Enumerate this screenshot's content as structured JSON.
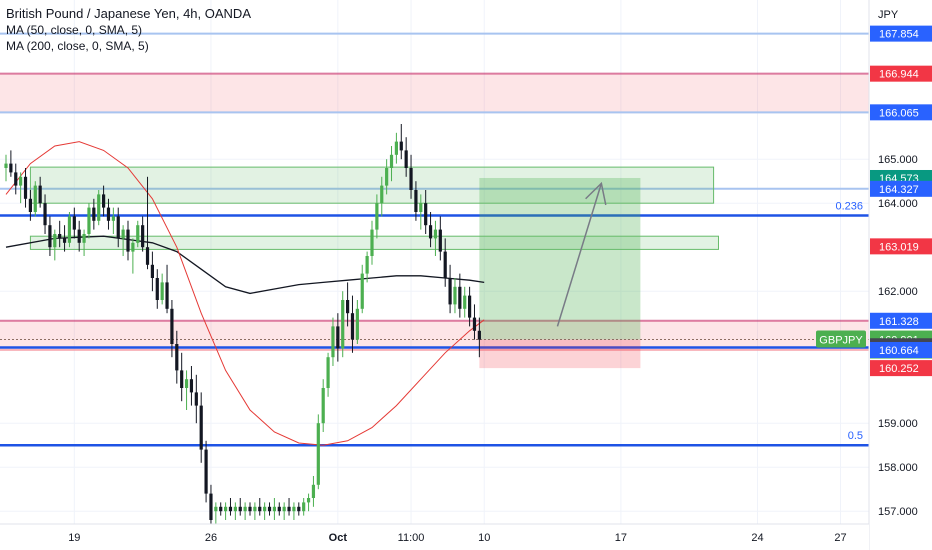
{
  "header": {
    "title": "British Pound / Japanese Yen, 4h, OANDA",
    "indicators": [
      "MA (50, close, 0, SMA, 5)",
      "MA (200, close, 0, SMA, 5)"
    ]
  },
  "colors": {
    "axis_bg": "#ffffff",
    "grid": "#f0f3fa",
    "candle_up": "#26a69a",
    "candle_up_body": "#4caf50",
    "candle_down": "#131722",
    "ma50": "#e53935",
    "ma200": "#131722",
    "level_blue": "#1e53e5",
    "level_light_blue": "#a8c4f0",
    "zone_red": "rgba(242,54,69,0.13)",
    "zone_red_line": "#c2185b",
    "zone_green": "rgba(76,175,80,0.16)",
    "zone_green_border": "#66bb6a",
    "target_green": "rgba(76,175,80,0.30)",
    "stop_red": "rgba(242,54,69,0.22)",
    "arrow": "#787b86",
    "tag_blue": "#2962ff",
    "tag_green": "#089981",
    "tag_red": "#f23645",
    "tag_dark": "#434651",
    "tag_symbol_green": "#4caf50"
  },
  "chart_data": {
    "type": "candlestick",
    "symbol": "GBPJPY",
    "currency": "JPY",
    "ylim": [
      156.8,
      168.3
    ],
    "y_ticks": [
      157.0,
      158.0,
      159.0,
      162.0,
      164.0,
      165.0
    ],
    "y_tick_labels": [
      "157.000",
      "158.000",
      "159.000",
      "162.000",
      "164.000",
      "165.000"
    ],
    "top_partial_label": "168.000",
    "x_ticks": [
      {
        "i": 14,
        "label": "19"
      },
      {
        "i": 42,
        "label": "26"
      },
      {
        "i": 68,
        "label": "Oct"
      },
      {
        "i": 83,
        "label": "11:00"
      },
      {
        "i": 98,
        "label": "10"
      },
      {
        "i": 126,
        "label": "17"
      },
      {
        "i": 154,
        "label": "24"
      },
      {
        "i": 171,
        "label": "27"
      }
    ],
    "price_tags": [
      {
        "value": 167.854,
        "label": "167.854",
        "style": "blue"
      },
      {
        "value": 166.944,
        "label": "166.944",
        "style": "red"
      },
      {
        "value": 166.065,
        "label": "166.065",
        "style": "blue"
      },
      {
        "value": 164.573,
        "label": "164.573",
        "style": "green"
      },
      {
        "value": 164.327,
        "label": "164.327",
        "style": "blue"
      },
      {
        "value": 163.019,
        "label": "163.019",
        "style": "red"
      },
      {
        "value": 161.328,
        "label": "161.328",
        "style": "blue"
      },
      {
        "value": 160.901,
        "label": "160.901",
        "style": "current",
        "sub": "03:58:52",
        "symbol": "GBPJPY"
      },
      {
        "value": 160.749,
        "label": "160.749",
        "style": "dark"
      },
      {
        "value": 160.664,
        "label": "160.664",
        "style": "blue"
      },
      {
        "value": 160.252,
        "label": "160.252",
        "style": "red"
      }
    ],
    "horizontal_levels": [
      {
        "value": 167.854,
        "kind": "light"
      },
      {
        "value": 166.065,
        "kind": "light"
      },
      {
        "value": 164.327,
        "kind": "light"
      },
      {
        "value": 163.72,
        "kind": "strong",
        "label": "0.236"
      },
      {
        "value": 160.72,
        "kind": "strong"
      },
      {
        "value": 158.5,
        "kind": "strong",
        "label": "0.5"
      }
    ],
    "red_zones": [
      {
        "top": 166.944,
        "bottom": 166.065,
        "edge_line": true
      },
      {
        "top": 161.328,
        "bottom": 160.664,
        "edge_line": true
      }
    ],
    "green_zones": [
      {
        "i1": 5,
        "i2": 145,
        "top": 164.82,
        "bottom": 164.0
      },
      {
        "i1": 5,
        "i2": 146,
        "top": 163.25,
        "bottom": 162.95
      }
    ],
    "position": {
      "i1": 97,
      "i2": 130,
      "entry": 160.901,
      "target": 164.573,
      "stop": 160.252
    },
    "arrow": {
      "from_i": 113,
      "from_v": 161.2,
      "to_i": 122,
      "to_v": 164.45
    },
    "current_price": 160.901,
    "candles": [
      [
        164.8,
        165.1,
        164.5,
        164.9
      ],
      [
        164.9,
        165.2,
        164.6,
        164.7
      ],
      [
        164.7,
        164.9,
        164.2,
        164.4
      ],
      [
        164.4,
        164.7,
        164.0,
        164.6
      ],
      [
        164.6,
        164.8,
        163.9,
        164.1
      ],
      [
        164.1,
        164.3,
        163.6,
        163.8
      ],
      [
        163.8,
        164.5,
        163.7,
        164.4
      ],
      [
        164.4,
        164.6,
        163.9,
        164.0
      ],
      [
        164.0,
        164.2,
        163.3,
        163.5
      ],
      [
        163.5,
        163.7,
        162.8,
        163.0
      ],
      [
        163.0,
        163.4,
        162.7,
        163.3
      ],
      [
        163.3,
        163.6,
        163.0,
        163.2
      ],
      [
        163.2,
        163.5,
        162.9,
        163.1
      ],
      [
        163.1,
        163.8,
        163.0,
        163.7
      ],
      [
        163.7,
        163.9,
        163.2,
        163.4
      ],
      [
        163.4,
        163.6,
        162.9,
        163.1
      ],
      [
        163.1,
        163.4,
        162.8,
        163.3
      ],
      [
        163.3,
        164.0,
        163.2,
        163.9
      ],
      [
        163.9,
        164.1,
        163.4,
        163.6
      ],
      [
        163.6,
        164.3,
        163.5,
        164.2
      ],
      [
        164.2,
        164.4,
        163.7,
        163.9
      ],
      [
        163.9,
        164.1,
        163.4,
        163.6
      ],
      [
        163.6,
        163.9,
        163.3,
        163.7
      ],
      [
        163.7,
        163.9,
        163.0,
        163.2
      ],
      [
        163.2,
        163.5,
        162.8,
        163.4
      ],
      [
        163.4,
        163.6,
        162.7,
        162.9
      ],
      [
        162.9,
        163.2,
        162.4,
        163.1
      ],
      [
        163.1,
        163.6,
        163.0,
        163.5
      ],
      [
        163.5,
        163.7,
        162.9,
        163.0
      ],
      [
        163.0,
        164.6,
        162.5,
        162.6
      ],
      [
        162.6,
        162.9,
        162.0,
        162.3
      ],
      [
        162.3,
        162.5,
        161.6,
        161.8
      ],
      [
        161.8,
        162.4,
        161.7,
        162.2
      ],
      [
        162.2,
        162.6,
        161.5,
        161.6
      ],
      [
        161.6,
        161.8,
        160.5,
        160.8
      ],
      [
        160.8,
        161.1,
        159.9,
        160.2
      ],
      [
        160.2,
        160.6,
        159.5,
        159.8
      ],
      [
        159.8,
        160.2,
        159.3,
        160.0
      ],
      [
        160.0,
        160.3,
        159.4,
        159.7
      ],
      [
        159.7,
        160.1,
        159.0,
        159.4
      ],
      [
        159.4,
        159.7,
        158.1,
        158.4
      ],
      [
        158.4,
        158.6,
        157.2,
        157.4
      ],
      [
        157.4,
        157.6,
        156.6,
        156.8
      ],
      [
        157.0,
        157.2,
        156.7,
        157.1
      ],
      [
        157.1,
        157.2,
        156.9,
        157.0
      ],
      [
        157.0,
        157.2,
        156.8,
        157.1
      ],
      [
        157.1,
        157.3,
        156.9,
        157.0
      ],
      [
        157.0,
        157.2,
        156.8,
        157.1
      ],
      [
        157.1,
        157.3,
        156.9,
        157.0
      ],
      [
        157.0,
        157.2,
        156.8,
        157.1
      ],
      [
        157.1,
        157.2,
        156.9,
        157.0
      ],
      [
        157.0,
        157.2,
        156.8,
        157.1
      ],
      [
        157.1,
        157.3,
        156.9,
        157.0
      ],
      [
        157.0,
        157.2,
        156.8,
        157.1
      ],
      [
        157.1,
        157.2,
        156.9,
        157.0
      ],
      [
        157.0,
        157.3,
        156.8,
        157.1
      ],
      [
        157.1,
        157.2,
        156.9,
        157.0
      ],
      [
        157.0,
        157.2,
        156.8,
        157.1
      ],
      [
        157.1,
        157.3,
        156.9,
        157.0
      ],
      [
        157.0,
        157.2,
        156.8,
        157.1
      ],
      [
        157.1,
        157.2,
        156.9,
        157.0
      ],
      [
        157.0,
        157.3,
        156.9,
        157.2
      ],
      [
        157.2,
        157.4,
        157.0,
        157.3
      ],
      [
        157.3,
        157.8,
        157.1,
        157.6
      ],
      [
        157.6,
        159.2,
        157.5,
        159.0
      ],
      [
        159.0,
        160.0,
        158.8,
        159.8
      ],
      [
        159.8,
        160.6,
        159.6,
        160.5
      ],
      [
        160.5,
        161.4,
        160.3,
        161.2
      ],
      [
        161.2,
        161.5,
        160.4,
        160.7
      ],
      [
        160.7,
        162.0,
        160.5,
        161.8
      ],
      [
        161.8,
        162.2,
        161.2,
        161.5
      ],
      [
        161.5,
        161.9,
        160.6,
        160.9
      ],
      [
        160.9,
        161.8,
        160.8,
        161.6
      ],
      [
        161.6,
        162.6,
        161.5,
        162.4
      ],
      [
        162.4,
        162.9,
        162.2,
        162.8
      ],
      [
        162.8,
        163.6,
        162.6,
        163.4
      ],
      [
        163.4,
        164.2,
        163.2,
        164.0
      ],
      [
        164.0,
        164.6,
        163.7,
        164.4
      ],
      [
        164.4,
        165.0,
        164.2,
        164.8
      ],
      [
        164.8,
        165.3,
        164.5,
        165.1
      ],
      [
        165.1,
        165.6,
        164.9,
        165.4
      ],
      [
        165.4,
        165.8,
        165.0,
        165.2
      ],
      [
        165.2,
        165.5,
        164.6,
        164.8
      ],
      [
        164.8,
        165.1,
        164.1,
        164.3
      ],
      [
        164.3,
        164.5,
        163.6,
        163.8
      ],
      [
        163.8,
        164.2,
        163.4,
        164.0
      ],
      [
        164.0,
        164.3,
        163.3,
        163.5
      ],
      [
        163.5,
        163.8,
        163.0,
        163.2
      ],
      [
        163.2,
        163.6,
        162.8,
        163.4
      ],
      [
        163.4,
        163.7,
        162.7,
        162.9
      ],
      [
        162.9,
        163.2,
        162.1,
        162.3
      ],
      [
        162.3,
        162.6,
        161.5,
        161.7
      ],
      [
        161.7,
        162.3,
        161.5,
        162.1
      ],
      [
        162.1,
        162.4,
        161.4,
        161.6
      ],
      [
        161.6,
        162.1,
        161.4,
        161.9
      ],
      [
        161.9,
        162.1,
        161.2,
        161.4
      ],
      [
        161.4,
        161.7,
        160.9,
        161.1
      ],
      [
        161.1,
        161.4,
        160.5,
        160.9
      ]
    ],
    "ma50": [
      [
        0,
        164.2
      ],
      [
        5,
        164.9
      ],
      [
        10,
        165.3
      ],
      [
        15,
        165.4
      ],
      [
        20,
        165.2
      ],
      [
        25,
        164.8
      ],
      [
        30,
        164.1
      ],
      [
        35,
        163.0
      ],
      [
        40,
        161.5
      ],
      [
        45,
        160.2
      ],
      [
        50,
        159.3
      ],
      [
        55,
        158.8
      ],
      [
        60,
        158.55
      ],
      [
        65,
        158.5
      ],
      [
        70,
        158.6
      ],
      [
        75,
        158.9
      ],
      [
        80,
        159.4
      ],
      [
        85,
        160.0
      ],
      [
        90,
        160.6
      ],
      [
        95,
        161.1
      ],
      [
        98,
        161.35
      ]
    ],
    "ma200": [
      [
        0,
        163.0
      ],
      [
        10,
        163.2
      ],
      [
        20,
        163.25
      ],
      [
        30,
        163.1
      ],
      [
        35,
        162.9
      ],
      [
        40,
        162.5
      ],
      [
        45,
        162.1
      ],
      [
        50,
        161.95
      ],
      [
        55,
        162.05
      ],
      [
        60,
        162.15
      ],
      [
        65,
        162.2
      ],
      [
        70,
        162.25
      ],
      [
        75,
        162.3
      ],
      [
        80,
        162.35
      ],
      [
        85,
        162.35
      ],
      [
        90,
        162.3
      ],
      [
        95,
        162.25
      ],
      [
        98,
        162.2
      ]
    ]
  }
}
